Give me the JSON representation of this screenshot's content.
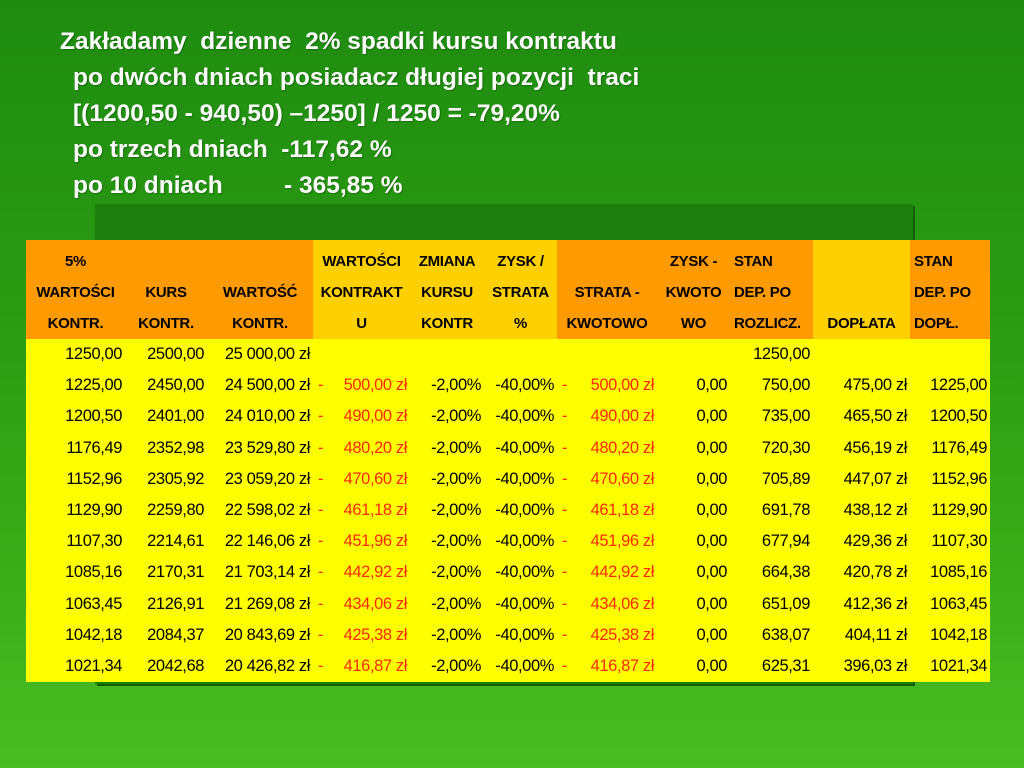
{
  "title_lines": [
    "Zakładamy  dzienne  2% spadki kursu kontraktu",
    "po dwóch dniach posiadacz długiej pozycji  traci",
    "[(1200,50 - 940,50) –1250] / 1250 = -79,20%",
    "po trzech dniach  -117,62 %",
    "po 10 dniach         - 365,85 %"
  ],
  "table": {
    "headers": [
      [
        "5%",
        "WARTOŚCI",
        "KONTR."
      ],
      [
        "KURS",
        "KONTR."
      ],
      [
        "WARTOŚĆ",
        "KONTR."
      ],
      [
        "WARTOŚCI",
        "KONTRAKT",
        "U"
      ],
      [
        "ZMIANA",
        "KURSU",
        "KONTR"
      ],
      [
        "ZYSK /",
        "STRATA",
        "%"
      ],
      [
        "STRATA -",
        "KWOTOWO"
      ],
      [
        "ZYSK -",
        "KWOTO",
        "WO"
      ],
      [
        "STAN",
        "DEP. PO",
        "ROZLICZ."
      ],
      [
        "DOPŁATA"
      ],
      [
        "STAN",
        "DEP. PO",
        "DOPŁ."
      ]
    ],
    "rows": [
      [
        "1250,00",
        "2500,00",
        "25 000,00 zł",
        "",
        "",
        "",
        "",
        "",
        "1250,00",
        "",
        ""
      ],
      [
        "1225,00",
        "2450,00",
        "24 500,00 zł",
        "500,00 zł",
        "-2,00%",
        "-40,00%",
        "500,00 zł",
        "0,00",
        "750,00",
        "475,00 zł",
        "1225,00"
      ],
      [
        "1200,50",
        "2401,00",
        "24 010,00 zł",
        "490,00 zł",
        "-2,00%",
        "-40,00%",
        "490,00 zł",
        "0,00",
        "735,00",
        "465,50 zł",
        "1200,50"
      ],
      [
        "1176,49",
        "2352,98",
        "23 529,80 zł",
        "480,20 zł",
        "-2,00%",
        "-40,00%",
        "480,20 zł",
        "0,00",
        "720,30",
        "456,19 zł",
        "1176,49"
      ],
      [
        "1152,96",
        "2305,92",
        "23 059,20 zł",
        "470,60 zł",
        "-2,00%",
        "-40,00%",
        "470,60 zł",
        "0,00",
        "705,89",
        "447,07 zł",
        "1152,96"
      ],
      [
        "1129,90",
        "2259,80",
        "22 598,02 zł",
        "461,18 zł",
        "-2,00%",
        "-40,00%",
        "461,18 zł",
        "0,00",
        "691,78",
        "438,12 zł",
        "1129,90"
      ],
      [
        "1107,30",
        "2214,61",
        "22 146,06 zł",
        "451,96 zł",
        "-2,00%",
        "-40,00%",
        "451,96 zł",
        "0,00",
        "677,94",
        "429,36 zł",
        "1107,30"
      ],
      [
        "1085,16",
        "2170,31",
        "21 703,14 zł",
        "442,92 zł",
        "-2,00%",
        "-40,00%",
        "442,92 zł",
        "0,00",
        "664,38",
        "420,78 zł",
        "1085,16"
      ],
      [
        "1063,45",
        "2126,91",
        "21 269,08 zł",
        "434,06 zł",
        "-2,00%",
        "-40,00%",
        "434,06 zł",
        "0,00",
        "651,09",
        "412,36 zł",
        "1063,45"
      ],
      [
        "1042,18",
        "2084,37",
        "20 843,69 zł",
        "425,38 zł",
        "-2,00%",
        "-40,00%",
        "425,38 zł",
        "0,00",
        "638,07",
        "404,11 zł",
        "1042,18"
      ],
      [
        "1021,34",
        "2042,68",
        "20 426,82 zł",
        "416,87 zł",
        "-2,00%",
        "-40,00%",
        "416,87 zł",
        "0,00",
        "625,31",
        "396,03 zł",
        "1021,34"
      ]
    ],
    "negative_sign": "-",
    "colors": {
      "header_orange": "#ff9a00",
      "header_yellow": "#ffd000",
      "cell_yellow": "#ffff00",
      "loss_red": "#ff2a00",
      "background_green": "#2a9a12"
    }
  }
}
